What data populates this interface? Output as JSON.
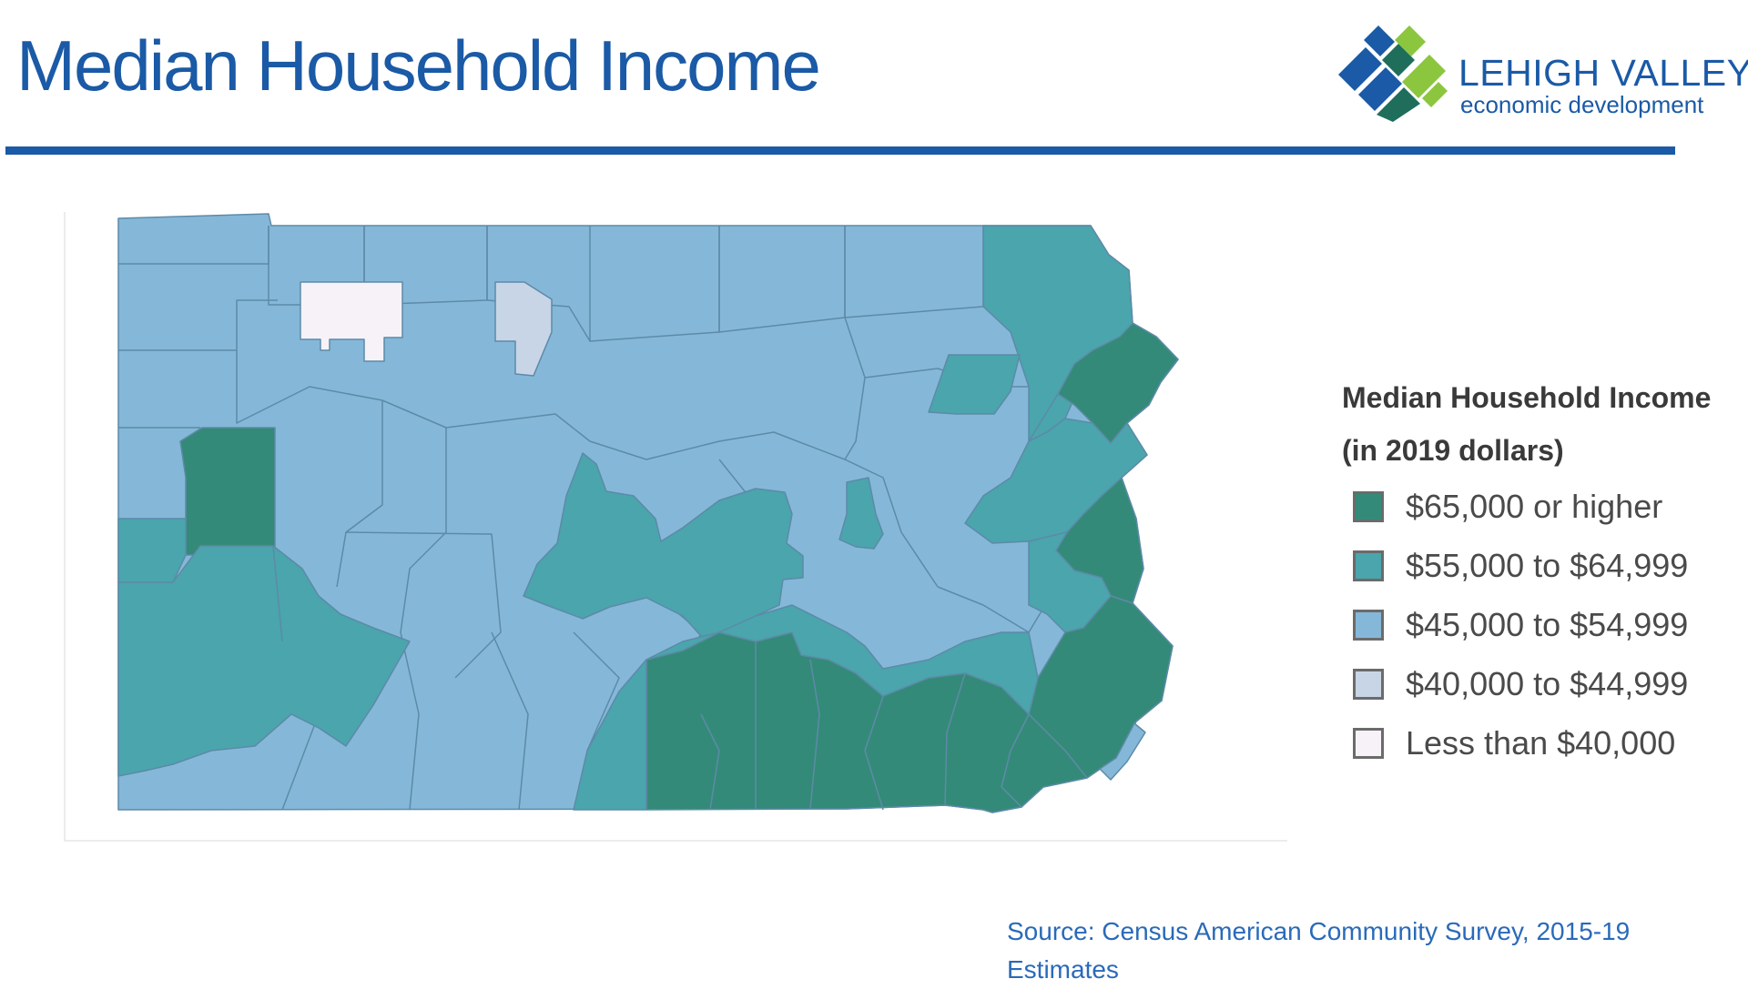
{
  "header": {
    "title": "Median Household Income"
  },
  "logo": {
    "line1": "LEHIGH VALLEY",
    "line2": "economic development",
    "colors": {
      "blue": "#1a5aa6",
      "green": "#8cc63f",
      "teal": "#1f6e5c"
    }
  },
  "map": {
    "legend": {
      "title_line1": "Median Household Income",
      "title_line2": "(in 2019 dollars)",
      "items": [
        {
          "label": "$65,000 or higher",
          "color": "#348a78"
        },
        {
          "label": "$55,000 to $64,999",
          "color": "#4aa5ad"
        },
        {
          "label": "$45,000 to $54,999",
          "color": "#85b8d8"
        },
        {
          "label": "$40,000 to $44,999",
          "color": "#c8d5e7"
        },
        {
          "label": "Less than $40,000",
          "color": "#f7f2f7"
        }
      ]
    },
    "colors": {
      "county_border": "#5d8aa8",
      "state_base": "#85b8d8"
    }
  },
  "footer": {
    "source_line1": "Source: Census American Community Survey, 2015-19",
    "source_line2": "Estimates"
  }
}
